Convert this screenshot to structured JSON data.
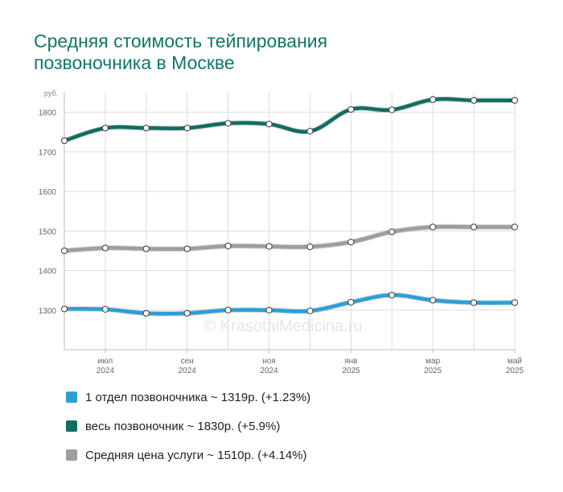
{
  "title_lines": [
    "Средняя стоимость тейпирования",
    "позвоночника в Москве"
  ],
  "watermark": "© KrasotaiMedicina.ru",
  "chart_data": {
    "type": "line",
    "y_unit": "руб.",
    "ylim": [
      1200,
      1850
    ],
    "y_ticks": [
      1300,
      1400,
      1500,
      1600,
      1700,
      1800
    ],
    "x_tick_labels": [
      {
        "pos": 1,
        "month": "июл",
        "year": "2024"
      },
      {
        "pos": 3,
        "month": "сен",
        "year": "2024"
      },
      {
        "pos": 5,
        "month": "ноя",
        "year": "2024"
      },
      {
        "pos": 7,
        "month": "янв",
        "year": "2025"
      },
      {
        "pos": 9,
        "month": "мар",
        "year": "2025"
      },
      {
        "pos": 11,
        "month": "май",
        "year": "2025"
      }
    ],
    "x": [
      "2024-06",
      "2024-07",
      "2024-08",
      "2024-09",
      "2024-10",
      "2024-11",
      "2024-12",
      "2025-01",
      "2025-02",
      "2025-03",
      "2025-04",
      "2025-05"
    ],
    "grid": true,
    "series": [
      {
        "name": "1 отдел позвоночника",
        "color": "#2a9fd8",
        "values": [
          1303,
          1302,
          1292,
          1292,
          1300,
          1300,
          1298,
          1320,
          1338,
          1325,
          1319,
          1319
        ]
      },
      {
        "name": "весь позвоночник",
        "color": "#0e6e60",
        "values": [
          1728,
          1760,
          1760,
          1760,
          1772,
          1770,
          1752,
          1807,
          1806,
          1832,
          1830,
          1830
        ]
      },
      {
        "name": "Средняя цена услуги",
        "color": "#9e9e9e",
        "values": [
          1450,
          1457,
          1455,
          1455,
          1462,
          1461,
          1460,
          1472,
          1498,
          1510,
          1510,
          1510
        ]
      }
    ]
  },
  "legend": [
    {
      "label": "1 отдел позвоночника ~ 1319р. (+1.23%)",
      "color": "#2a9fd8"
    },
    {
      "label": "весь позвоночник ~ 1830р. (+5.9%)",
      "color": "#0e6e60"
    },
    {
      "label": "Средняя цена услуги ~ 1510р. (+4.14%)",
      "color": "#9e9e9e"
    }
  ]
}
